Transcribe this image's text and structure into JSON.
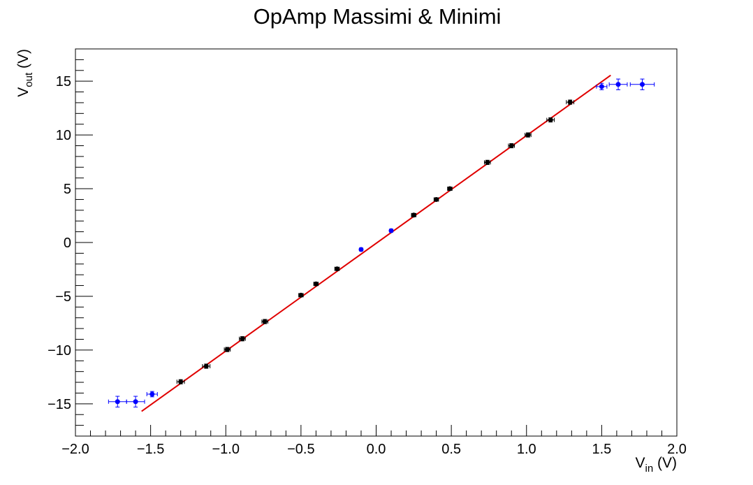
{
  "chart_data": {
    "type": "scatter",
    "title": "OpAmp Massimi & Minimi",
    "xlabel": {
      "main": "V",
      "sub": "in",
      "unit": " (V)"
    },
    "ylabel": {
      "main": "V",
      "sub": "out",
      "unit": " (V)"
    },
    "xlim": [
      -2.0,
      2.0
    ],
    "ylim": [
      -18,
      18
    ],
    "xticks": [
      -2.0,
      -1.5,
      -1.0,
      -0.5,
      0.0,
      0.5,
      1.0,
      1.5,
      2.0
    ],
    "xtick_labels": [
      "−2.0",
      "−1.5",
      "−1.0",
      "−0.5",
      "0.0",
      "0.5",
      "1.0",
      "1.5",
      "2.0"
    ],
    "yticks": [
      -15,
      -10,
      -5,
      0,
      5,
      10,
      15
    ],
    "ytick_labels": [
      "−15",
      "−10",
      "−5",
      "0",
      "5",
      "10",
      "15"
    ],
    "grid": false,
    "series": [
      {
        "color": "#000000",
        "points": [
          {
            "x": -1.3,
            "y": -12.95,
            "xerr": 0.025,
            "yerr": 0.2
          },
          {
            "x": -1.13,
            "y": -11.5,
            "xerr": 0.025,
            "yerr": 0.2
          },
          {
            "x": -0.99,
            "y": -9.95,
            "xerr": 0.02,
            "yerr": 0.2
          },
          {
            "x": -0.89,
            "y": -8.95,
            "xerr": 0.02,
            "yerr": 0.2
          },
          {
            "x": -0.74,
            "y": -7.35,
            "xerr": 0.02,
            "yerr": 0.2
          },
          {
            "x": -0.5,
            "y": -4.9,
            "xerr": 0.015,
            "yerr": 0.15
          },
          {
            "x": -0.4,
            "y": -3.85,
            "xerr": 0.015,
            "yerr": 0.15
          },
          {
            "x": -0.26,
            "y": -2.45,
            "xerr": 0.015,
            "yerr": 0.15
          },
          {
            "x": 0.25,
            "y": 2.55,
            "xerr": 0.015,
            "yerr": 0.15
          },
          {
            "x": 0.4,
            "y": 4.0,
            "xerr": 0.015,
            "yerr": 0.15
          },
          {
            "x": 0.49,
            "y": 5.0,
            "xerr": 0.015,
            "yerr": 0.15
          },
          {
            "x": 0.74,
            "y": 7.45,
            "xerr": 0.02,
            "yerr": 0.2
          },
          {
            "x": 0.9,
            "y": 9.0,
            "xerr": 0.02,
            "yerr": 0.2
          },
          {
            "x": 1.01,
            "y": 10.0,
            "xerr": 0.02,
            "yerr": 0.2
          },
          {
            "x": 1.16,
            "y": 11.4,
            "xerr": 0.025,
            "yerr": 0.2
          },
          {
            "x": 1.29,
            "y": 13.05,
            "xerr": 0.025,
            "yerr": 0.2
          }
        ]
      },
      {
        "color": "#0000ff",
        "points": [
          {
            "x": -1.72,
            "y": -14.8,
            "xerr": 0.06,
            "yerr": 0.5
          },
          {
            "x": -1.6,
            "y": -14.8,
            "xerr": 0.06,
            "yerr": 0.5
          },
          {
            "x": -1.49,
            "y": -14.1,
            "xerr": 0.035,
            "yerr": 0.25
          },
          {
            "x": -0.1,
            "y": -0.65,
            "xerr": 0.01,
            "yerr": 0.1
          },
          {
            "x": 0.1,
            "y": 1.1,
            "xerr": 0.01,
            "yerr": 0.1
          },
          {
            "x": 1.5,
            "y": 14.5,
            "xerr": 0.035,
            "yerr": 0.3
          },
          {
            "x": 1.61,
            "y": 14.7,
            "xerr": 0.06,
            "yerr": 0.5
          },
          {
            "x": 1.77,
            "y": 14.7,
            "xerr": 0.08,
            "yerr": 0.5
          }
        ]
      }
    ],
    "fit_line": {
      "color": "#e00000",
      "x": [
        -1.56,
        1.56
      ],
      "y": [
        -15.7,
        15.55
      ]
    }
  }
}
